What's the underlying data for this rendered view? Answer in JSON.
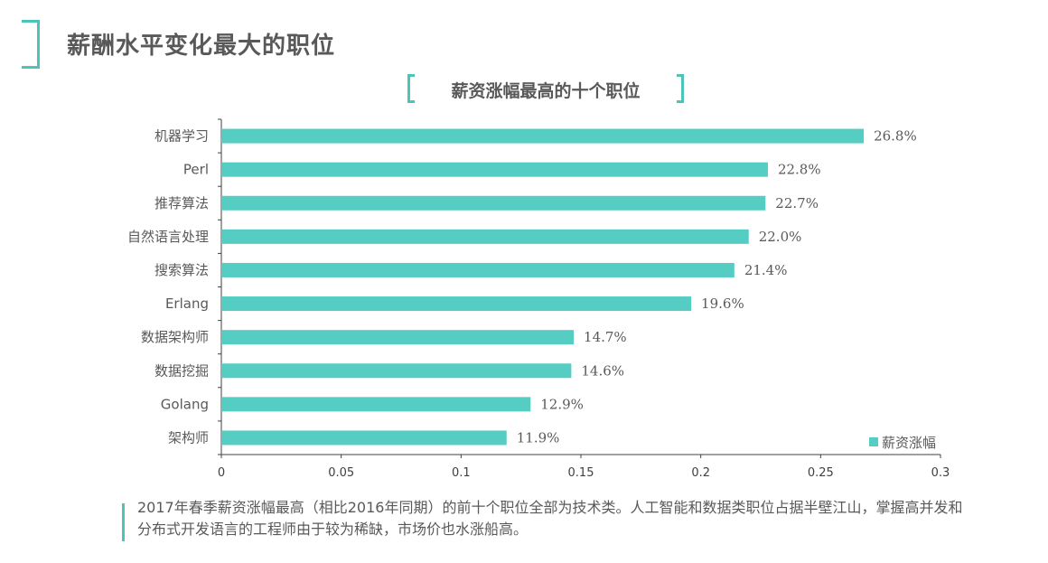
{
  "page": {
    "title": "薪酬水平变化最大的职位",
    "note": "2017年春季薪资涨幅最高（相比2016年同期）的前十个职位全部为技术类。人工智能和数据类职位占据半壁江山，掌握高并发和分布式开发语言的工程师由于较为稀缺，市场价也水涨船高。"
  },
  "chart_data": {
    "type": "bar",
    "orientation": "horizontal",
    "title": "薪资涨幅最高的十个职位",
    "categories": [
      "机器学习",
      "Perl",
      "推荐算法",
      "自然语言处理",
      "搜索算法",
      "Erlang",
      "数据架构师",
      "数据挖掘",
      "Golang",
      "架构师"
    ],
    "series": [
      {
        "name": "薪资涨幅",
        "values": [
          0.268,
          0.228,
          0.227,
          0.22,
          0.214,
          0.196,
          0.147,
          0.146,
          0.129,
          0.119
        ],
        "labels": [
          "26.8%",
          "22.8%",
          "22.7%",
          "22.0%",
          "21.4%",
          "19.6%",
          "14.7%",
          "14.6%",
          "12.9%",
          "11.9%"
        ]
      }
    ],
    "xlim": [
      0,
      0.3
    ],
    "xticks": [
      "0",
      "0.05",
      "0.1",
      "0.15",
      "0.2",
      "0.25",
      "0.3"
    ],
    "grid": false,
    "legend": "bottom-right",
    "bar_color": "#55cdc3"
  }
}
